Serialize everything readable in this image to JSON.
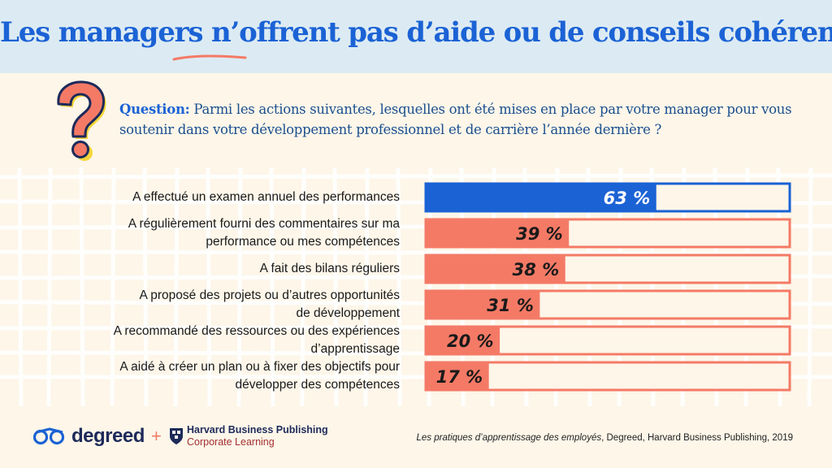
{
  "title": {
    "before": "Les ",
    "emph": "managers n’",
    "after": "offrent pas d’aide ou de conseils cohérents."
  },
  "question": {
    "lead": "Question:",
    "text": " Parmi les actions suivantes, lesquelles ont été mises en place par votre manager pour vous soutenir dans votre développement professionnel et de carrière l’année dernière ?"
  },
  "chart_data": {
    "type": "bar",
    "orientation": "horizontal",
    "categories": [
      "A effectué un examen annuel des performances",
      "A régulièrement fourni des commentaires sur ma performance ou mes compétences",
      "A fait des bilans réguliers",
      "A proposé des projets ou d’autres opportunités de développement",
      "A recommandé des ressources ou des expériences d’apprentissage",
      "A aidé à créer un plan ou à fixer des objectifs pour développer des compétences"
    ],
    "category_lines": [
      [
        "A effectué un examen annuel des performances"
      ],
      [
        "A régulièrement fourni des commentaires sur ma",
        "performance ou mes compétences"
      ],
      [
        "A fait des bilans réguliers"
      ],
      [
        "A proposé des projets ou d’autres opportunités",
        "de développement"
      ],
      [
        "A recommandé des ressources ou des expériences",
        "d’apprentissage"
      ],
      [
        "A aidé à créer un plan ou à fixer des objectifs pour",
        "développer des compétences"
      ]
    ],
    "values": [
      63,
      39,
      38,
      31,
      20,
      17
    ],
    "data_labels": [
      "63 %",
      "39 %",
      "38 %",
      "31 %",
      "20 %",
      "17 %"
    ],
    "xlim": [
      0,
      100
    ],
    "colors": [
      "#1b62d5",
      "#f47a66",
      "#f47a66",
      "#f47a66",
      "#f47a66",
      "#f47a66"
    ],
    "track_color": "#fdf6e9"
  },
  "footer": {
    "brand1": "degreed",
    "plus": "+",
    "brand2_line1": "Harvard Business Publishing",
    "brand2_line2": "Corporate Learning",
    "citation_italic": "Les pratiques d’apprentissage des employés",
    "citation_rest": ", Degreed, Harvard Business Publishing, 2019"
  }
}
